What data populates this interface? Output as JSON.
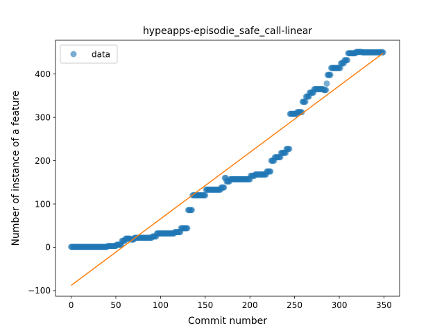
{
  "chart_data": {
    "type": "scatter",
    "title": "hypeapps-episodie_safe_call-linear",
    "xlabel": "Commit number",
    "ylabel": "Number of instance of a feature",
    "xlim": [
      -17.5,
      367.5
    ],
    "ylim": [
      -113,
      478
    ],
    "xticks": [
      0,
      50,
      100,
      150,
      200,
      250,
      300,
      350
    ],
    "yticks": [
      -100,
      0,
      100,
      200,
      300,
      400
    ],
    "legend": {
      "placement": "top-left",
      "entries": [
        "data"
      ]
    },
    "grid": false,
    "colors": {
      "data": "#1f77b4",
      "fit": "#ff7f0e"
    },
    "series": [
      {
        "name": "data",
        "kind": "points",
        "segments": [
          [
            0,
            40,
            1
          ],
          [
            41,
            50,
            3
          ],
          [
            51,
            56,
            6
          ],
          [
            57,
            60,
            15
          ],
          [
            61,
            66,
            20
          ],
          [
            67,
            70,
            18
          ],
          [
            71,
            90,
            22
          ],
          [
            91,
            95,
            25
          ],
          [
            96,
            115,
            32
          ],
          [
            116,
            122,
            35
          ],
          [
            123,
            130,
            44
          ],
          [
            131,
            135,
            86
          ],
          [
            136,
            150,
            120
          ],
          [
            151,
            167,
            133
          ],
          [
            168,
            171,
            138
          ],
          [
            172,
            173,
            160
          ],
          [
            174,
            177,
            152
          ],
          [
            178,
            200,
            157
          ],
          [
            201,
            205,
            165
          ],
          [
            206,
            218,
            168
          ],
          [
            219,
            223,
            175
          ],
          [
            224,
            227,
            200
          ],
          [
            228,
            234,
            208
          ],
          [
            235,
            240,
            218
          ],
          [
            241,
            244,
            227
          ],
          [
            245,
            252,
            308
          ],
          [
            253,
            258,
            312
          ],
          [
            259,
            262,
            336
          ],
          [
            263,
            266,
            348
          ],
          [
            267,
            271,
            357
          ],
          [
            272,
            282,
            365
          ],
          [
            283,
            285,
            363
          ],
          [
            286,
            286,
            378
          ],
          [
            287,
            290,
            398
          ],
          [
            291,
            301,
            414
          ],
          [
            302,
            305,
            425
          ],
          [
            306,
            309,
            432
          ],
          [
            310,
            318,
            448
          ],
          [
            319,
            325,
            451
          ],
          [
            326,
            349,
            450
          ]
        ]
      },
      {
        "name": "",
        "kind": "line",
        "x": [
          0,
          349
        ],
        "y": [
          -88,
          448
        ]
      }
    ]
  }
}
